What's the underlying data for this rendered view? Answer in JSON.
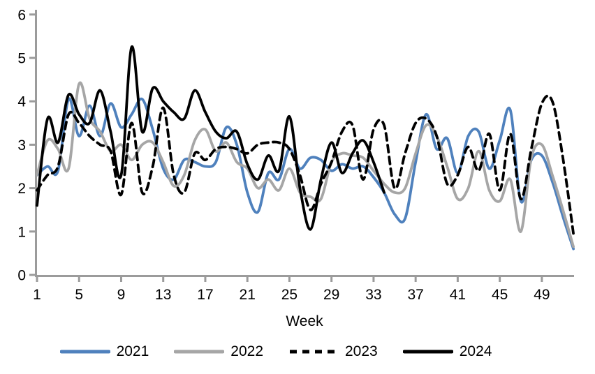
{
  "chart_data": {
    "type": "line",
    "title": "",
    "xlabel": "Week",
    "ylabel": "",
    "ylim": [
      0,
      6
    ],
    "x_range": [
      1,
      52
    ],
    "yticks": [
      0,
      1,
      2,
      3,
      4,
      5,
      6
    ],
    "xticks": [
      1,
      5,
      9,
      13,
      17,
      21,
      25,
      29,
      33,
      37,
      41,
      45,
      49
    ],
    "grid": false,
    "legend_position": "bottom",
    "axis_color": "#9b9b9b",
    "text_color": "#000000",
    "series": [
      {
        "name": "2021",
        "color": "#4f81bd",
        "dash": "solid",
        "values": [
          2.3,
          2.5,
          2.4,
          4.05,
          3.2,
          3.9,
          3.2,
          3.95,
          3.4,
          3.7,
          4.05,
          3.35,
          2.45,
          2.2,
          2.65,
          2.6,
          2.5,
          2.6,
          3.4,
          3.0,
          1.9,
          1.45,
          2.35,
          2.2,
          2.9,
          2.45,
          2.7,
          2.65,
          2.4,
          2.55,
          2.45,
          2.5,
          2.25,
          1.9,
          1.4,
          1.3,
          2.6,
          3.7,
          2.9,
          3.15,
          2.35,
          3.2,
          3.3,
          2.45,
          3.1,
          3.8,
          1.7,
          2.65,
          2.75,
          2.15,
          1.35,
          0.6
        ]
      },
      {
        "name": "2022",
        "color": "#a6a6a6",
        "dash": "solid",
        "values": [
          2.3,
          3.1,
          2.9,
          2.45,
          4.4,
          3.6,
          3.3,
          2.85,
          3.0,
          2.65,
          3.0,
          3.05,
          2.6,
          2.05,
          2.3,
          3.1,
          3.35,
          2.85,
          3.05,
          2.6,
          2.45,
          2.0,
          2.2,
          1.95,
          2.45,
          1.9,
          1.8,
          1.75,
          2.6,
          2.8,
          2.75,
          2.7,
          2.4,
          2.1,
          1.9,
          2.0,
          2.8,
          3.45,
          3.2,
          2.5,
          1.75,
          2.0,
          2.85,
          1.95,
          1.7,
          2.2,
          1.0,
          2.7,
          3.0,
          2.3,
          1.5,
          0.65
        ]
      },
      {
        "name": "2023",
        "color": "#000000",
        "dash": "dashed",
        "values": [
          1.95,
          2.3,
          2.5,
          3.7,
          3.5,
          3.2,
          3.0,
          2.85,
          1.85,
          3.5,
          1.9,
          2.5,
          3.85,
          2.3,
          1.9,
          2.8,
          2.65,
          2.9,
          2.95,
          2.9,
          2.8,
          3.0,
          3.05,
          3.05,
          2.9,
          2.3,
          1.5,
          2.1,
          2.6,
          3.3,
          3.45,
          2.2,
          3.35,
          3.45,
          2.0,
          2.8,
          3.5,
          3.6,
          3.2,
          2.1,
          2.3,
          2.95,
          2.4,
          3.25,
          1.95,
          3.25,
          1.75,
          2.9,
          3.95,
          4.0,
          2.7,
          0.95
        ]
      },
      {
        "name": "2024",
        "color": "#000000",
        "dash": "solid",
        "values": [
          1.6,
          3.6,
          3.05,
          4.15,
          3.7,
          3.5,
          4.25,
          3.3,
          2.3,
          5.25,
          3.3,
          4.3,
          4.0,
          3.75,
          3.6,
          4.25,
          3.75,
          3.3,
          3.15,
          3.3,
          2.55,
          2.2,
          2.75,
          2.4,
          3.65,
          2.0,
          1.05,
          2.2,
          3.05,
          2.35,
          2.8,
          3.1,
          2.6,
          1.9
        ]
      }
    ]
  }
}
